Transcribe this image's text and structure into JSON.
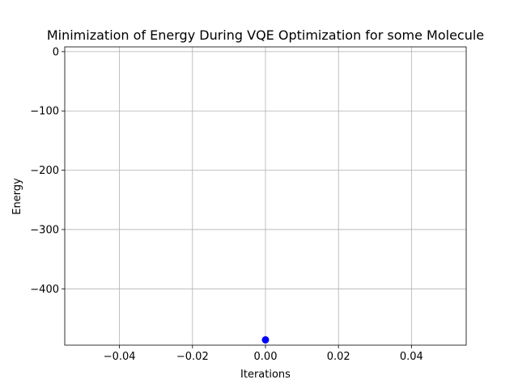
{
  "chart_data": {
    "type": "scatter",
    "title": "Minimization of Energy During VQE Optimization for some Molecule",
    "xlabel": "Iterations",
    "ylabel": "Energy",
    "xlim": [
      -0.055,
      0.055
    ],
    "ylim": [
      -495,
      8
    ],
    "x_ticks": [
      -0.04,
      -0.02,
      0.0,
      0.02,
      0.04
    ],
    "x_tick_labels": [
      "−0.04",
      "−0.02",
      "0.00",
      "0.02",
      "0.04"
    ],
    "y_ticks": [
      0,
      -100,
      -200,
      -300,
      -400
    ],
    "y_tick_labels": [
      "0",
      "−100",
      "−200",
      "−300",
      "−400"
    ],
    "grid": true,
    "series": [
      {
        "color": "#0000ff",
        "marker": "circle",
        "points": [
          {
            "x": 0,
            "y": -486
          }
        ]
      }
    ]
  }
}
